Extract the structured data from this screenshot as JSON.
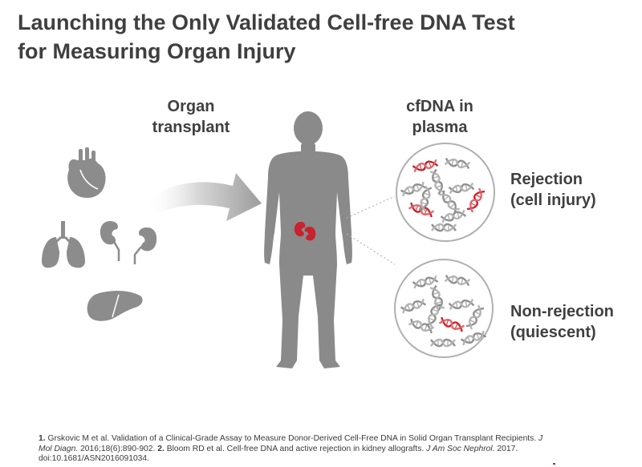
{
  "title": {
    "line1": "Launching the Only Validated Cell-free DNA Test",
    "line2": "for Measuring Organ Injury"
  },
  "labels": {
    "organ_transplant": [
      "Organ",
      "transplant"
    ],
    "cfdna_plasma": [
      "cfDNA in",
      "plasma"
    ],
    "rejection": [
      "Rejection",
      "(cell injury)"
    ],
    "non_rejection": [
      "Non-rejection",
      "(quiescent)"
    ]
  },
  "references": {
    "r1_num": "1.",
    "r1_text": " Grskovic M et al. Validation of a Clinical-Grade Assay to Measure Donor-Derived Cell-Free DNA in Solid Organ Transplant Recipients. ",
    "r1_journal": "J Mol Diagn.",
    "r1_cite": " 2016;18(6):890-902. ",
    "r2_num": "2.",
    "r2_text": " Bloom RD et al. Cell-free DNA and active rejection in kidney allografts. ",
    "r2_journal": "J Am Soc Nephrol",
    "r2_cite": ". 2017. doi:10.1681/ASN2016091034."
  },
  "icons": {
    "organs": [
      "heart-icon",
      "lungs-icon",
      "kidneys-icon",
      "liver-icon"
    ],
    "figure": "human-figure-icon",
    "dna": "dna-strand-icon"
  },
  "colors": {
    "gray_figure": "#8a8a8a",
    "red_accent": "#c8232c",
    "dna_gray": "#8f8f8f",
    "circle_border": "#b0b0b0"
  },
  "dna_pools": {
    "rejection": {
      "total_fragments": 11,
      "red_fragments": 3
    },
    "non_rejection": {
      "total_fragments": 11,
      "red_fragments": 1
    }
  }
}
